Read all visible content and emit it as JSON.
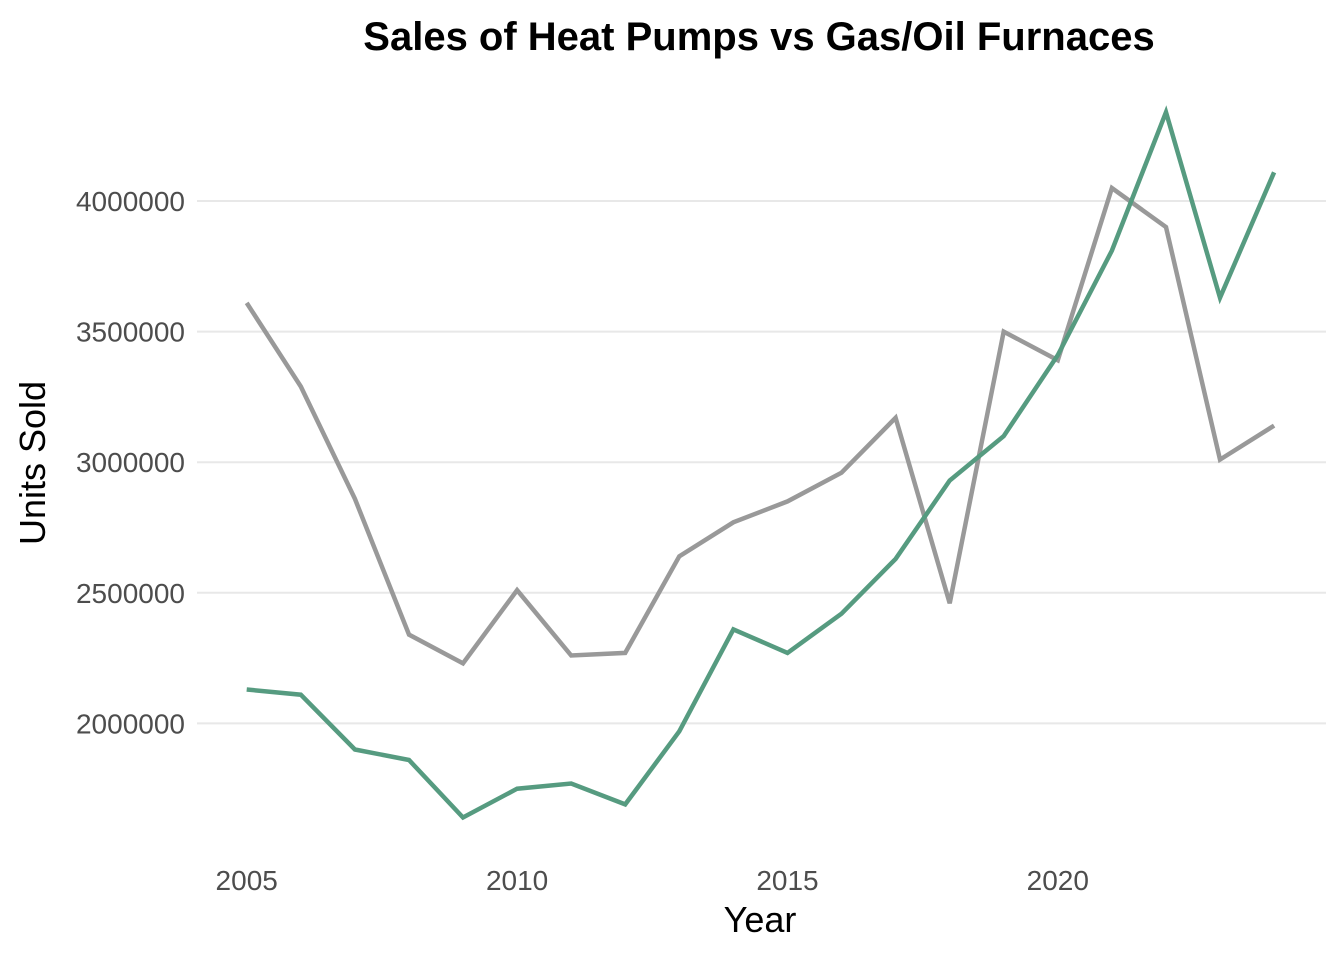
{
  "page": {
    "background": "#ffffff"
  },
  "chart_data": {
    "type": "line",
    "title": "Sales of Heat Pumps vs Gas/Oil Furnaces",
    "xlabel": "Year",
    "ylabel": "Units Sold",
    "x": [
      2005,
      2006,
      2007,
      2008,
      2009,
      2010,
      2011,
      2012,
      2013,
      2014,
      2015,
      2016,
      2017,
      2018,
      2019,
      2020,
      2021,
      2022,
      2023,
      2024
    ],
    "series": [
      {
        "name": "Heat Pumps",
        "color": "#569b80",
        "values": [
          2130000,
          2110000,
          1900000,
          1860000,
          1640000,
          1750000,
          1770000,
          1690000,
          1970000,
          2360000,
          2270000,
          2420000,
          2630000,
          2930000,
          3100000,
          3410000,
          3810000,
          4340000,
          3630000,
          4110000
        ]
      },
      {
        "name": "Gas/Oil Furnaces",
        "color": "#999999",
        "values": [
          3610000,
          3290000,
          2860000,
          2340000,
          2230000,
          2510000,
          2260000,
          2270000,
          2640000,
          2770000,
          2850000,
          2960000,
          3170000,
          2460000,
          3500000,
          3390000,
          4050000,
          3900000,
          3010000,
          3140000
        ]
      }
    ],
    "xticks": [
      2005,
      2010,
      2015,
      2020
    ],
    "yticks": [
      2000000,
      2500000,
      3000000,
      3500000,
      4000000
    ],
    "xlim": [
      2004.08,
      2024.96
    ],
    "ylim": [
      1569000,
      4425000
    ],
    "grid": "horizontal-only",
    "legend": "none"
  }
}
